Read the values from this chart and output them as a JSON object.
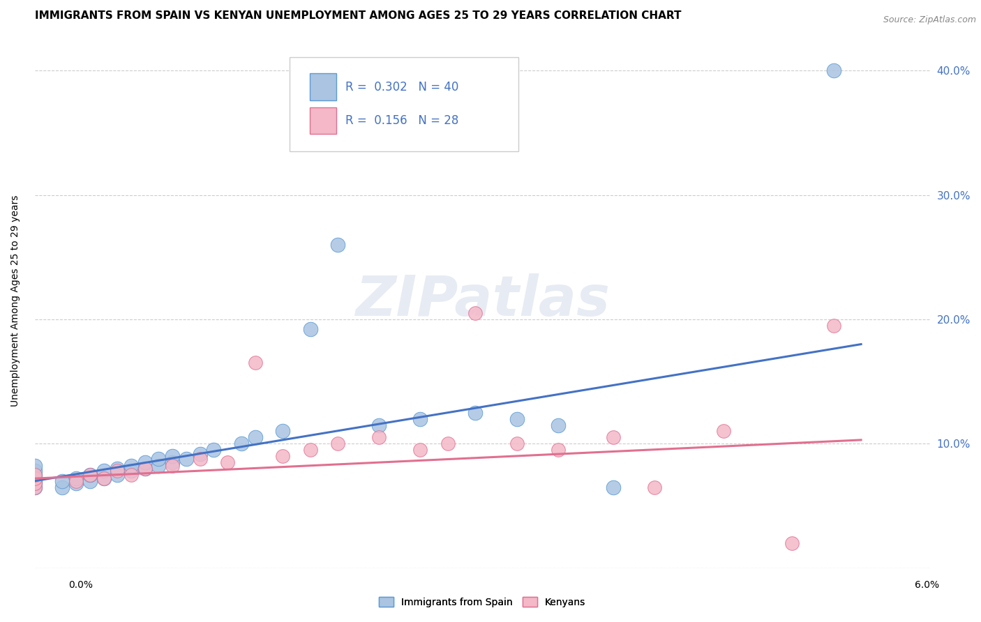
{
  "title": "IMMIGRANTS FROM SPAIN VS KENYAN UNEMPLOYMENT AMONG AGES 25 TO 29 YEARS CORRELATION CHART",
  "source": "Source: ZipAtlas.com",
  "ylabel": "Unemployment Among Ages 25 to 29 years",
  "blue_R": 0.302,
  "blue_N": 40,
  "pink_R": 0.156,
  "pink_N": 28,
  "blue_color": "#aac4e2",
  "pink_color": "#f4b8c8",
  "blue_edge_color": "#5b9bd5",
  "pink_edge_color": "#e07090",
  "blue_line_color": "#4472c4",
  "pink_line_color": "#e07090",
  "watermark": "ZIPatlas",
  "blue_scatter_x": [
    0.0,
    0.0,
    0.0,
    0.0,
    0.0,
    0.0,
    0.0,
    0.002,
    0.002,
    0.003,
    0.003,
    0.004,
    0.004,
    0.005,
    0.005,
    0.006,
    0.006,
    0.007,
    0.007,
    0.008,
    0.008,
    0.009,
    0.009,
    0.01,
    0.01,
    0.011,
    0.012,
    0.013,
    0.015,
    0.016,
    0.018,
    0.02,
    0.022,
    0.025,
    0.028,
    0.032,
    0.035,
    0.038,
    0.042,
    0.058
  ],
  "blue_scatter_y": [
    0.065,
    0.068,
    0.07,
    0.072,
    0.075,
    0.078,
    0.082,
    0.065,
    0.07,
    0.068,
    0.072,
    0.07,
    0.075,
    0.072,
    0.078,
    0.075,
    0.08,
    0.078,
    0.082,
    0.08,
    0.085,
    0.082,
    0.088,
    0.085,
    0.09,
    0.088,
    0.092,
    0.095,
    0.1,
    0.105,
    0.11,
    0.192,
    0.26,
    0.115,
    0.12,
    0.125,
    0.12,
    0.115,
    0.065,
    0.4
  ],
  "pink_scatter_x": [
    0.0,
    0.0,
    0.0,
    0.0,
    0.003,
    0.004,
    0.005,
    0.006,
    0.007,
    0.008,
    0.01,
    0.012,
    0.014,
    0.016,
    0.018,
    0.02,
    0.022,
    0.025,
    0.028,
    0.03,
    0.032,
    0.035,
    0.038,
    0.042,
    0.045,
    0.05,
    0.055,
    0.058
  ],
  "pink_scatter_y": [
    0.065,
    0.068,
    0.072,
    0.075,
    0.07,
    0.075,
    0.072,
    0.078,
    0.075,
    0.08,
    0.082,
    0.088,
    0.085,
    0.165,
    0.09,
    0.095,
    0.1,
    0.105,
    0.095,
    0.1,
    0.205,
    0.1,
    0.095,
    0.105,
    0.065,
    0.11,
    0.02,
    0.195
  ],
  "blue_trendline_x": [
    0.0,
    0.06
  ],
  "blue_trendline_y": [
    0.07,
    0.18
  ],
  "pink_trendline_x": [
    0.0,
    0.06
  ],
  "pink_trendline_y": [
    0.072,
    0.103
  ],
  "xlim": [
    0.0,
    0.065
  ],
  "ylim": [
    0.0,
    0.43
  ],
  "y_tick_vals": [
    0.0,
    0.1,
    0.2,
    0.3,
    0.4
  ],
  "y_tick_labels": [
    "",
    "10.0%",
    "20.0%",
    "30.0%",
    "40.0%"
  ],
  "grid_color": "#cccccc",
  "background_color": "#ffffff"
}
